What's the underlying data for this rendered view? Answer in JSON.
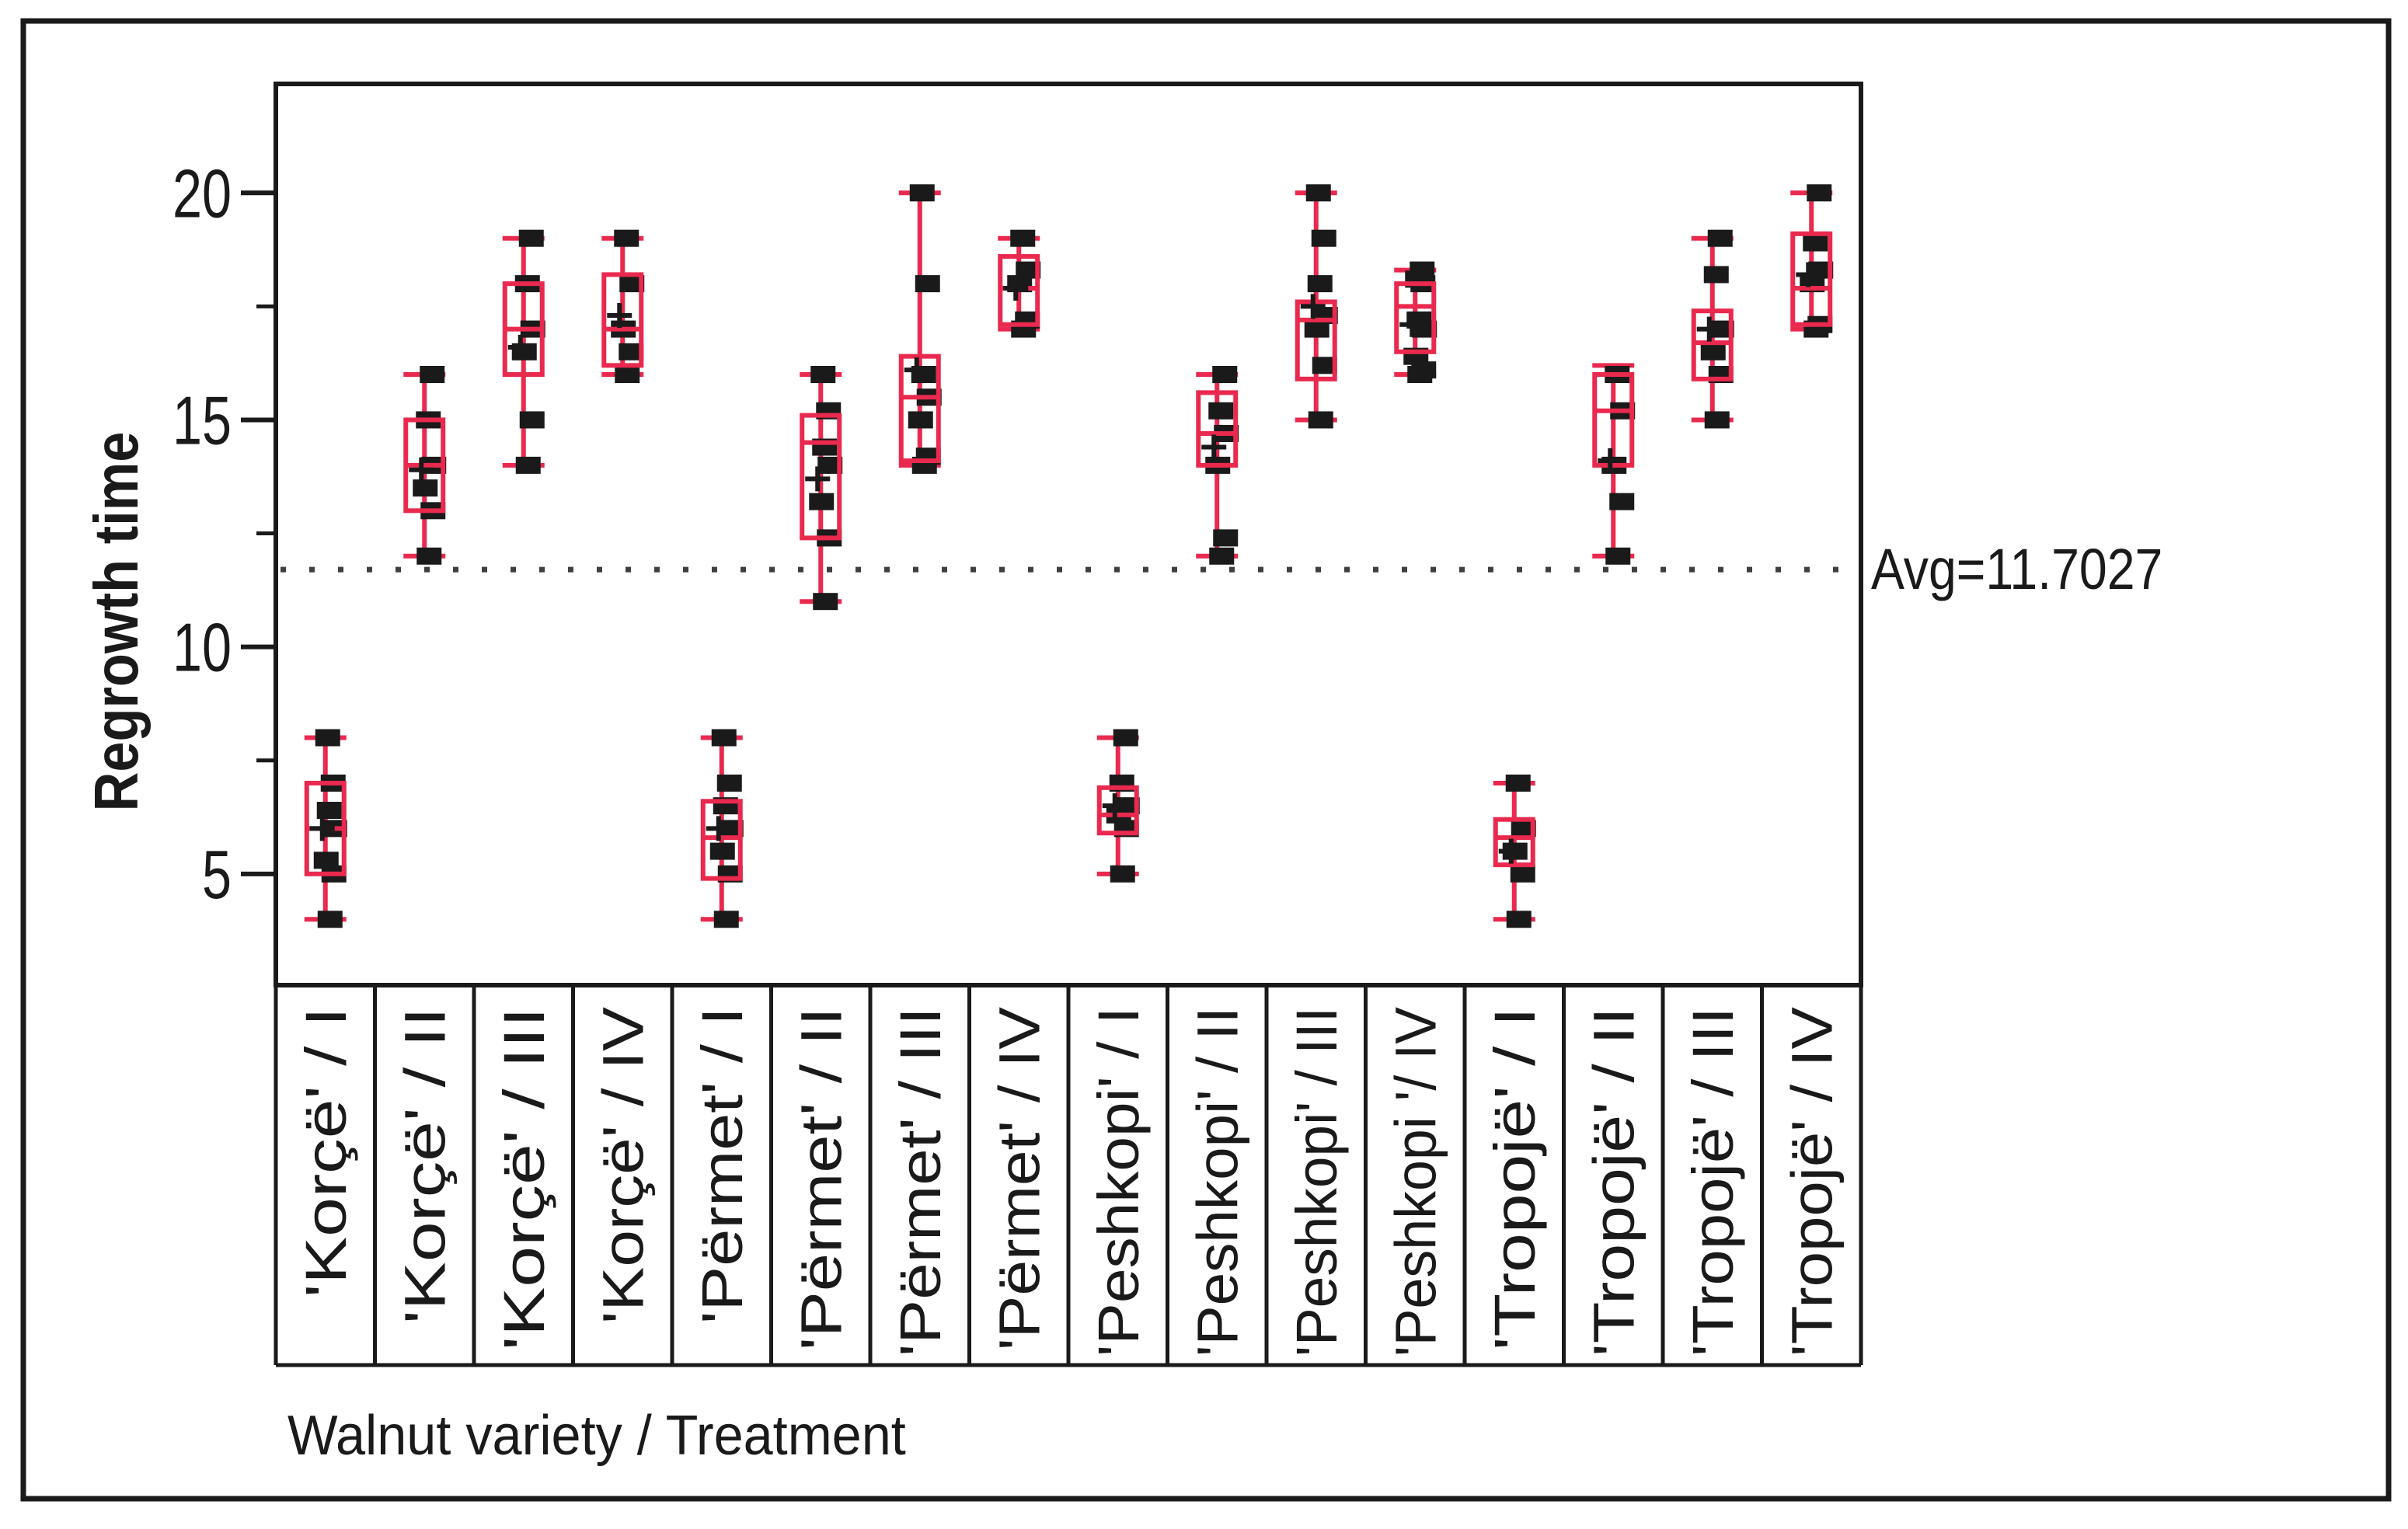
{
  "figure": {
    "ylabel": "Regrowth time",
    "xlabel": "Walnut variety / Treatment",
    "avg_label": "Avg=11.7027",
    "colors": {
      "box": "#e9294e",
      "marker": "#1a1a1a",
      "axis": "#1a1a1a",
      "avg_line": "#3f3f3f",
      "background": "#ffffff"
    }
  },
  "chart_data": {
    "type": "box",
    "orientation": "vertical",
    "title": "",
    "ylabel": "Regrowth time",
    "xlabel": "Walnut variety / Treatment",
    "ylim": [
      2.55,
      22.4
    ],
    "y_major_ticks": [
      5,
      10,
      15,
      20
    ],
    "y_minor_ticks": [
      7.5,
      12.5,
      17.5
    ],
    "grid": false,
    "legend": "none",
    "avg_line": {
      "value": 11.7027,
      "label": "Avg=11.7027",
      "style": "dotted"
    },
    "groups": [
      {
        "label": "'Korçë' / I",
        "variety": "Korçë",
        "treatment": "I",
        "min": 4,
        "q1": 5,
        "median": 6,
        "q3": 7,
        "max": 8,
        "mean": 6.0,
        "points": [
          4,
          5,
          5.3,
          6,
          6.4,
          7,
          8
        ]
      },
      {
        "label": "'Korçë' / II",
        "variety": "Korçë",
        "treatment": "II",
        "min": 12,
        "q1": 13,
        "median": 14,
        "q3": 15,
        "max": 16,
        "mean": 13.9,
        "points": [
          12,
          13,
          13.5,
          14,
          15,
          16
        ]
      },
      {
        "label": "'Korçë' / III",
        "variety": "Korçë",
        "treatment": "III",
        "min": 14,
        "q1": 16,
        "median": 17,
        "q3": 18,
        "max": 19,
        "mean": 16.6,
        "points": [
          14,
          15,
          16.5,
          17,
          18,
          19
        ]
      },
      {
        "label": "'Korçë' / IV",
        "variety": "Korçë",
        "treatment": "IV",
        "min": 16,
        "q1": 16.2,
        "median": 17,
        "q3": 18.2,
        "max": 19,
        "mean": 17.3,
        "points": [
          16,
          16.5,
          17,
          18,
          19
        ]
      },
      {
        "label": "'Përmet' / I",
        "variety": "Përmet",
        "treatment": "I",
        "min": 4,
        "q1": 4.9,
        "median": 5.8,
        "q3": 6.6,
        "max": 8,
        "mean": 6.0,
        "points": [
          4,
          5,
          5.5,
          6,
          6.5,
          7,
          8
        ]
      },
      {
        "label": "'Përmet' / II",
        "variety": "Përmet",
        "treatment": "II",
        "min": 11,
        "q1": 12.4,
        "median": 14.5,
        "q3": 15.1,
        "max": 16,
        "mean": 13.7,
        "points": [
          11,
          12.4,
          13.2,
          14,
          14.4,
          15.2,
          16
        ]
      },
      {
        "label": "'Përmet' / III",
        "variety": "Përmet",
        "treatment": "III",
        "min": 14,
        "q1": 14.1,
        "median": 15.5,
        "q3": 16.4,
        "max": 20,
        "mean": 16.1,
        "points": [
          14,
          14.2,
          15,
          15.5,
          16,
          18,
          20
        ]
      },
      {
        "label": "'Përmet' / IV",
        "variety": "Përmet",
        "treatment": "IV",
        "min": 17,
        "q1": 17.1,
        "median": 17.9,
        "q3": 18.6,
        "max": 19,
        "mean": 17.9,
        "points": [
          17,
          17.2,
          18,
          18.3,
          19
        ]
      },
      {
        "label": "'Peshkopi' / I",
        "variety": "Peshkopi",
        "treatment": "I",
        "min": 5,
        "q1": 5.9,
        "median": 6.3,
        "q3": 6.9,
        "max": 8,
        "mean": 6.5,
        "points": [
          5,
          6,
          6.3,
          6.5,
          7,
          8
        ]
      },
      {
        "label": "'Peshkopi' / II",
        "variety": "Peshkopi",
        "treatment": "II",
        "min": 12,
        "q1": 14,
        "median": 14.7,
        "q3": 15.6,
        "max": 16,
        "mean": 14.4,
        "points": [
          12,
          12.4,
          14,
          14.7,
          15.2,
          16
        ]
      },
      {
        "label": "'Peshkopi' / III",
        "variety": "Peshkopi",
        "treatment": "III",
        "min": 15,
        "q1": 15.9,
        "median": 17.2,
        "q3": 17.6,
        "max": 20,
        "mean": 17.5,
        "points": [
          15,
          16.2,
          17,
          17.3,
          18,
          19,
          20
        ]
      },
      {
        "label": "'Peshkopi '/ IV",
        "variety": "Peshkopi",
        "treatment": "IV",
        "min": 16,
        "q1": 16.5,
        "median": 17.5,
        "q3": 18,
        "max": 18.3,
        "mean": 17.1,
        "points": [
          16,
          16.1,
          16.4,
          17,
          17.2,
          18,
          18.1,
          18.3
        ]
      },
      {
        "label": "'Tropojë' / I",
        "variety": "Tropojë",
        "treatment": "I",
        "min": 4,
        "q1": 5.2,
        "median": 5.8,
        "q3": 6.2,
        "max": 7,
        "mean": 5.5,
        "points": [
          4,
          5,
          5.5,
          6,
          7
        ]
      },
      {
        "label": "'Tropojë' / II",
        "variety": "Tropojë",
        "treatment": "II",
        "min": 12,
        "q1": 14,
        "median": 15.2,
        "q3": 16,
        "max": 16.2,
        "mean": 14.1,
        "points": [
          12,
          13.2,
          14,
          15.2,
          16
        ]
      },
      {
        "label": "'Tropojë' / III",
        "variety": "Tropojë",
        "treatment": "III",
        "min": 15,
        "q1": 15.9,
        "median": 16.7,
        "q3": 17.4,
        "max": 19,
        "mean": 17.0,
        "points": [
          15,
          16,
          16.5,
          17,
          18.2,
          19
        ]
      },
      {
        "label": "'Tropojë' / IV",
        "variety": "Tropojë",
        "treatment": "IV",
        "min": 17,
        "q1": 17.1,
        "median": 17.9,
        "q3": 19.1,
        "max": 20,
        "mean": 18.2,
        "points": [
          17,
          17.1,
          18,
          18.3,
          18.9,
          20
        ]
      }
    ]
  }
}
